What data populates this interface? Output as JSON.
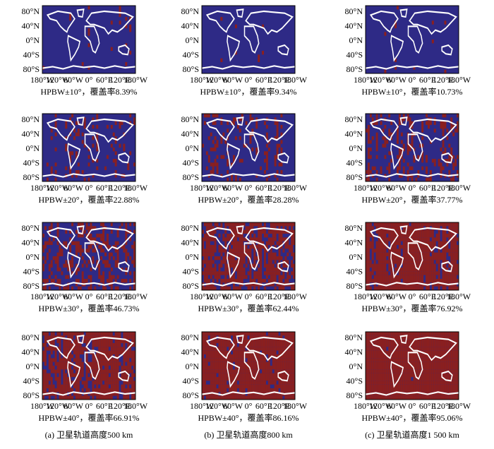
{
  "yticks": [
    "80°N",
    "40°N",
    "0°N",
    "40°S",
    "80°S"
  ],
  "xticks": [
    "180°W",
    "120°W",
    "60°W",
    "0°",
    "60°E",
    "120°E",
    "180°W"
  ],
  "panels": [
    [
      "HPBW±10°，覆盖率8.39%",
      "HPBW±10°，覆盖率9.34%",
      "HPBW±10°，覆盖率10.73%"
    ],
    [
      "HPBW±20°，覆盖率22.88%",
      "HPBW±20°，覆盖率28.28%",
      "HPBW±20°，覆盖率37.77%"
    ],
    [
      "HPBW±30°，覆盖率46.73%",
      "HPBW±30°，覆盖率62.44%",
      "HPBW±30°，覆盖率76.92%"
    ],
    [
      "HPBW±40°，覆盖率66.91%",
      "HPBW±40°，覆盖率86.16%",
      "HPBW±40°，覆盖率95.06%"
    ]
  ],
  "columns": [
    "(a) 卫星轨道高度500 km",
    "(b) 卫星轨道高度800 km",
    "(c) 卫星轨道高度1 500 km"
  ]
}
